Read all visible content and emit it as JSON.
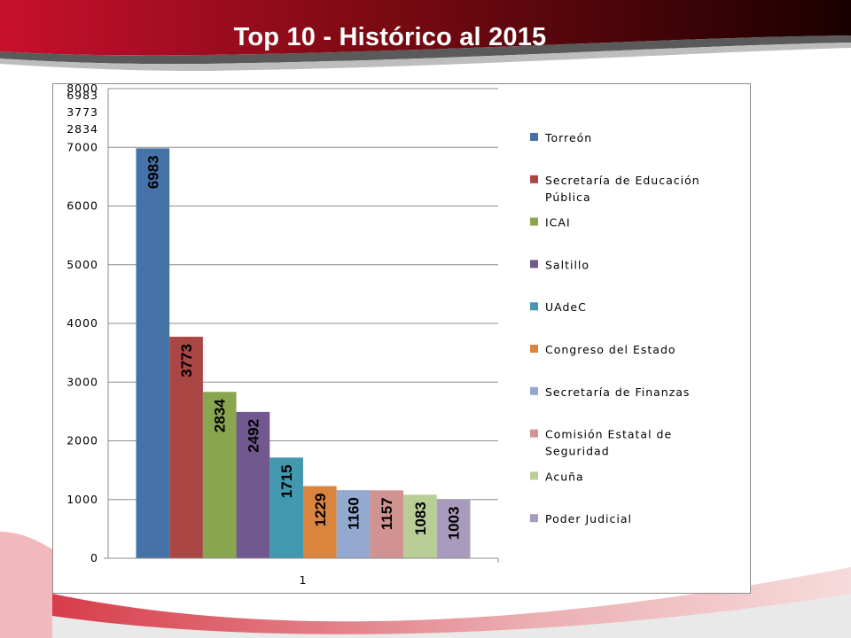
{
  "slide": {
    "title": "Top 10 - Histórico al 2015"
  },
  "chart_data": {
    "type": "bar",
    "categories": [
      "1"
    ],
    "series": [
      {
        "name": "Torreón",
        "values": [
          6983
        ],
        "color": "#4572a7"
      },
      {
        "name": "Secretaría de Educación Pública",
        "name_lines": [
          "Secretaría de Educación",
          "Pública"
        ],
        "values": [
          3773
        ],
        "color": "#aa4643"
      },
      {
        "name": "ICAI",
        "values": [
          2834
        ],
        "color": "#89a54e"
      },
      {
        "name": "Saltillo",
        "values": [
          2492
        ],
        "color": "#71588f"
      },
      {
        "name": "UAdeC",
        "values": [
          1715
        ],
        "color": "#4198af"
      },
      {
        "name": "Congreso del Estado",
        "values": [
          1229
        ],
        "color": "#db843d"
      },
      {
        "name": "Secretaría de Finanzas",
        "values": [
          1160
        ],
        "color": "#93a9cf"
      },
      {
        "name": "Comisión Estatal de Seguridad",
        "name_lines": [
          "Comisión Estatal de",
          "Seguridad"
        ],
        "values": [
          1157
        ],
        "color": "#d19392"
      },
      {
        "name": "Acuña",
        "values": [
          1083
        ],
        "color": "#b9cd96"
      },
      {
        "name": "Poder Judicial",
        "values": [
          1003
        ],
        "color": "#a99bbd"
      }
    ],
    "ylim": [
      0,
      8000
    ],
    "yticks": [
      0,
      1000,
      2000,
      3000,
      4000,
      5000,
      6000,
      7000,
      8000
    ],
    "extra_tick_labels": [
      "6983",
      "3773",
      "2834"
    ],
    "grid": true,
    "legend": "right",
    "title": "",
    "xlabel": "",
    "ylabel": ""
  }
}
